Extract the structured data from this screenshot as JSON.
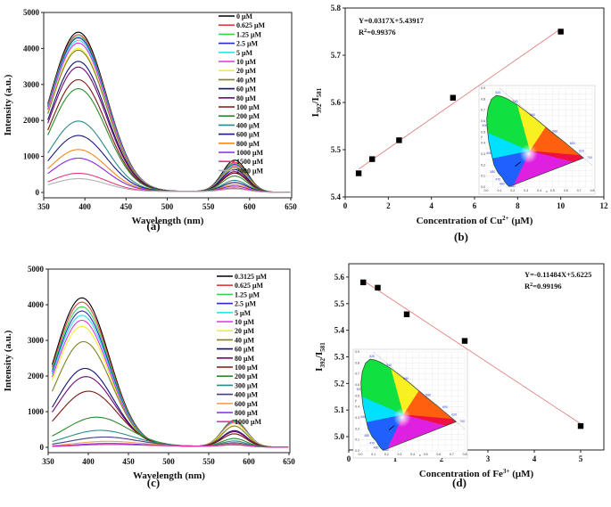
{
  "chart_data": [
    {
      "id": "a",
      "panel_label": "(a)",
      "type": "line",
      "xlabel": "Wavelength (nm)",
      "ylabel": "Intensity (a.u.)",
      "xlim": [
        350,
        650
      ],
      "ylim": [
        0,
        5000
      ],
      "xticks": [
        350,
        400,
        450,
        500,
        550,
        600,
        650
      ],
      "yticks": [
        0,
        1000,
        2000,
        3000,
        4000,
        5000
      ],
      "legend_position": "top-right",
      "series": [
        {
          "name": "0 μM",
          "color": "#000000",
          "peak1": 4450,
          "peak2": 880
        },
        {
          "name": "0.625 μM",
          "color": "#d9413a",
          "peak1": 4380,
          "peak2": 820
        },
        {
          "name": "1.25 μM",
          "color": "#35d64b",
          "peak1": 4330,
          "peak2": 790
        },
        {
          "name": "2.5 μM",
          "color": "#2a2ad0",
          "peak1": 4290,
          "peak2": 760
        },
        {
          "name": "5 μM",
          "color": "#33e0e0",
          "peak1": 4220,
          "peak2": 740
        },
        {
          "name": "10 μM",
          "color": "#e033e0",
          "peak1": 4150,
          "peak2": 720
        },
        {
          "name": "20 μM",
          "color": "#f0f030",
          "peak1": 4000,
          "peak2": 700
        },
        {
          "name": "40 μM",
          "color": "#808020",
          "peak1": 3950,
          "peak2": 680
        },
        {
          "name": "60 μM",
          "color": "#101070",
          "peak1": 3640,
          "peak2": 620
        },
        {
          "name": "80 μM",
          "color": "#700a70",
          "peak1": 3480,
          "peak2": 560
        },
        {
          "name": "100 μM",
          "color": "#7a1a10",
          "peak1": 3130,
          "peak2": 520
        },
        {
          "name": "200 μM",
          "color": "#2a8a2a",
          "peak1": 2880,
          "peak2": 440
        },
        {
          "name": "400 μM",
          "color": "#2a8a8a",
          "peak1": 1980,
          "peak2": 320
        },
        {
          "name": "600 μM",
          "color": "#1a1a80",
          "peak1": 1580,
          "peak2": 260
        },
        {
          "name": "800 μM",
          "color": "#f08a20",
          "peak1": 1190,
          "peak2": 200
        },
        {
          "name": "1000 μM",
          "color": "#8a2ae0",
          "peak1": 950,
          "peak2": 160
        },
        {
          "name": "1500 μM",
          "color": "#e03a80",
          "peak1": 530,
          "peak2": 110
        },
        {
          "name": "2000 μM",
          "color": "#b0b0b0",
          "peak1": 380,
          "peak2": 80
        }
      ]
    },
    {
      "id": "b",
      "panel_label": "(b)",
      "type": "scatter",
      "xlabel": "Concentration of Cu2+ (μM)",
      "xlabel_main": "Concentration of Cu",
      "xlabel_sup": "2+",
      "xlabel_tail": " (μM)",
      "ylabel_main": "I",
      "ylabel_sub1": "392",
      "ylabel_mid": "/I",
      "ylabel_sub2": "581",
      "xlim": [
        0,
        12
      ],
      "ylim": [
        5.4,
        5.8
      ],
      "xticks": [
        0,
        2,
        4,
        6,
        8,
        10,
        12
      ],
      "yticks": [
        5.4,
        5.5,
        5.6,
        5.7,
        5.8
      ],
      "x": [
        0.625,
        1.25,
        2.5,
        5,
        10
      ],
      "y": [
        5.45,
        5.48,
        5.52,
        5.61,
        5.75
      ],
      "fit": {
        "slope": 0.0317,
        "intercept": 5.43917,
        "x_range": [
          0.625,
          10
        ]
      },
      "equation": "Y=0.0317X+5.43917",
      "r2_prefix": "R",
      "r2_sup": "2",
      "r2_value": "=0.99376",
      "inset": "CIE 1931 chromaticity diagram",
      "fit_color": "#e08080"
    },
    {
      "id": "c",
      "panel_label": "(c)",
      "type": "line",
      "xlabel": "Wavelength (nm)",
      "ylabel": "Intensity (a.u.)",
      "xlim": [
        350,
        650
      ],
      "ylim": [
        0,
        5000
      ],
      "xticks": [
        350,
        400,
        450,
        500,
        550,
        600,
        650
      ],
      "yticks": [
        0,
        1000,
        2000,
        3000,
        4000,
        5000
      ],
      "legend_position": "top-right",
      "series": [
        {
          "name": "0.3125 μM",
          "color": "#000000",
          "peak1": 4190,
          "peak2": 740,
          "shift": 0
        },
        {
          "name": "0.625 μM",
          "color": "#d9413a",
          "peak1": 4070,
          "peak2": 730,
          "shift": 0
        },
        {
          "name": "1.25 μM",
          "color": "#35d64b",
          "peak1": 3940,
          "peak2": 720,
          "shift": 0
        },
        {
          "name": "2.5 μM",
          "color": "#2a2ad0",
          "peak1": 3820,
          "peak2": 700,
          "shift": 0
        },
        {
          "name": "5 μM",
          "color": "#33e0e0",
          "peak1": 3700,
          "peak2": 690,
          "shift": 0
        },
        {
          "name": "10 μM",
          "color": "#e033e0",
          "peak1": 3560,
          "peak2": 680,
          "shift": 0
        },
        {
          "name": "20 μM",
          "color": "#f0f030",
          "peak1": 3390,
          "peak2": 660,
          "shift": 0
        },
        {
          "name": "40 μM",
          "color": "#808020",
          "peak1": 2960,
          "peak2": 580,
          "shift": 2
        },
        {
          "name": "60 μM",
          "color": "#101070",
          "peak1": 2210,
          "peak2": 450,
          "shift": 4
        },
        {
          "name": "80 μM",
          "color": "#700a70",
          "peak1": 1980,
          "peak2": 420,
          "shift": 5
        },
        {
          "name": "100 μM",
          "color": "#7a1a10",
          "peak1": 1570,
          "peak2": 360,
          "shift": 8
        },
        {
          "name": "200 μM",
          "color": "#2a8a2a",
          "peak1": 840,
          "peak2": 230,
          "shift": 18
        },
        {
          "name": "300 μM",
          "color": "#2a8a8a",
          "peak1": 470,
          "peak2": 160,
          "shift": 22
        },
        {
          "name": "400 μM",
          "color": "#404080",
          "peak1": 280,
          "peak2": 110,
          "shift": 27
        },
        {
          "name": "600 μM",
          "color": "#f0a060",
          "peak1": 160,
          "peak2": 80,
          "shift": 30
        },
        {
          "name": "800 μM",
          "color": "#8a2ae0",
          "peak1": 100,
          "peak2": 60,
          "shift": 30
        },
        {
          "name": "1000 μM",
          "color": "#e03aa0",
          "peak1": 70,
          "peak2": 50,
          "shift": 30
        }
      ]
    },
    {
      "id": "d",
      "panel_label": "(d)",
      "type": "scatter",
      "xlabel": "Concentration of Fe3+ (μM)",
      "xlabel_main": "Concentration of Fe",
      "xlabel_sup": "3+",
      "xlabel_tail": " (μM)",
      "ylabel_main": "I",
      "ylabel_sub1": "392",
      "ylabel_mid": "/I",
      "ylabel_sub2": "581",
      "xlim": [
        0,
        5.5
      ],
      "ylim": [
        4.95,
        5.65
      ],
      "xticks": [
        0,
        1,
        2,
        3,
        4,
        5
      ],
      "yticks": [
        5.0,
        5.1,
        5.2,
        5.3,
        5.4,
        5.5,
        5.6
      ],
      "x": [
        0.3125,
        0.625,
        1.25,
        2.5,
        5
      ],
      "y": [
        5.58,
        5.56,
        5.46,
        5.36,
        5.04
      ],
      "fit": {
        "slope": -0.11484,
        "intercept": 5.6225,
        "x_range": [
          0.3125,
          5
        ]
      },
      "equation": "Y=-0.11484X+5.6225",
      "r2_prefix": "R",
      "r2_sup": "2",
      "r2_value": "=0.99196",
      "inset": "CIE 1931 chromaticity diagram",
      "fit_color": "#e08080"
    }
  ],
  "cie_inset": {
    "x_ticks": [
      "0.0",
      "0.1",
      "0.2",
      "0.3",
      "0.4",
      "0.5",
      "0.6",
      "0.7",
      "0.8"
    ],
    "y_ticks": [
      "0.0",
      "0.1",
      "0.2",
      "0.3",
      "0.4",
      "0.5",
      "0.6",
      "0.7",
      "0.8",
      "0.9"
    ],
    "x_label": "x",
    "y_label": "y",
    "wavelength_labels": [
      "380",
      "460",
      "470",
      "480",
      "490",
      "500",
      "520",
      "540",
      "560",
      "580",
      "600",
      "620",
      "700"
    ]
  }
}
